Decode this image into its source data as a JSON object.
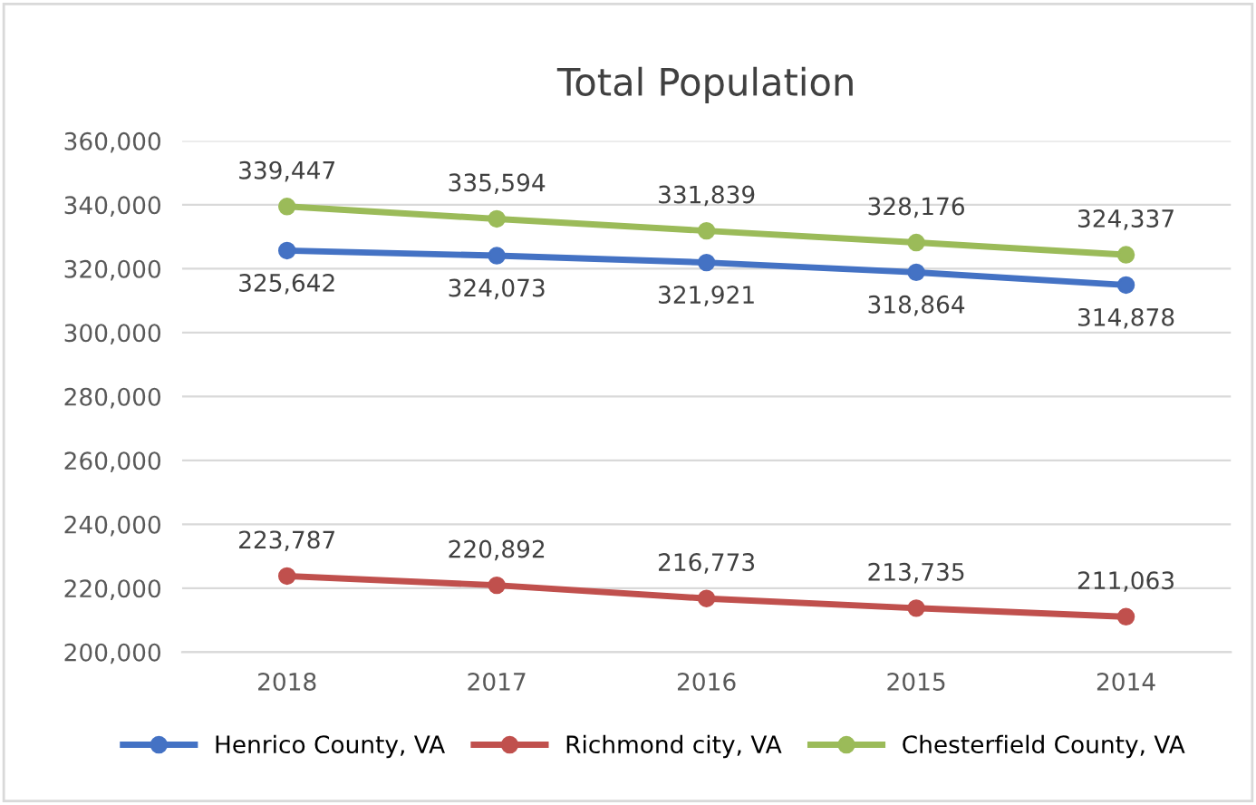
{
  "chart_data": {
    "type": "line",
    "title": "Total Population",
    "categories": [
      "2018",
      "2017",
      "2016",
      "2015",
      "2014"
    ],
    "series": [
      {
        "name": "Henrico County, VA",
        "color": "#4472c4",
        "values": [
          325642,
          324073,
          321921,
          318864,
          314878
        ],
        "value_labels": [
          "325,642",
          "324,073",
          "321,921",
          "318,864",
          "314,878"
        ]
      },
      {
        "name": "Richmond city, VA",
        "color": "#c0504d",
        "values": [
          223787,
          220892,
          216773,
          213735,
          211063
        ],
        "value_labels": [
          "223,787",
          "220,892",
          "216,773",
          "213,735",
          "211,063"
        ]
      },
      {
        "name": "Chesterfield County, VA",
        "color": "#9bbb59",
        "values": [
          339447,
          335594,
          331839,
          328176,
          324337
        ],
        "value_labels": [
          "339,447",
          "335,594",
          "331,839",
          "328,176",
          "324,337"
        ]
      }
    ],
    "ylim": [
      200000,
      360000
    ],
    "yticks": [
      {
        "value": 200000,
        "label": "200,000"
      },
      {
        "value": 220000,
        "label": "220,000"
      },
      {
        "value": 240000,
        "label": "240,000"
      },
      {
        "value": 260000,
        "label": "260,000"
      },
      {
        "value": 280000,
        "label": "280,000"
      },
      {
        "value": 300000,
        "label": "300,000"
      },
      {
        "value": 320000,
        "label": "320,000"
      },
      {
        "value": 340000,
        "label": "340,000"
      },
      {
        "value": 360000,
        "label": "360,000"
      }
    ],
    "grid": "y",
    "legend": "bottom",
    "marker": "circle",
    "line_style": "solid"
  }
}
